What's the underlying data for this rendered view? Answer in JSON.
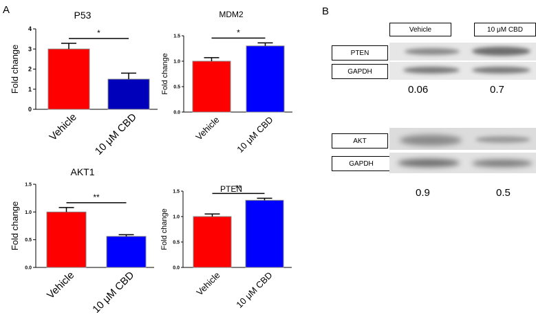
{
  "panel_labels": {
    "a": "A",
    "b": "B"
  },
  "chart_data": [
    {
      "type": "bar",
      "title": "P53",
      "ylabel": "Fold change",
      "categories": [
        "Vehicle",
        "10 μM CBD"
      ],
      "values": [
        3.0,
        1.5
      ],
      "errors": [
        0.28,
        0.3
      ],
      "colors": [
        "#ff0000",
        "#0000bb"
      ],
      "ylim": [
        0,
        4
      ],
      "yticks": [
        "0",
        "1",
        "2",
        "3",
        "4"
      ],
      "significance": "*"
    },
    {
      "type": "bar",
      "title": "MDM2",
      "ylabel": "Fold change",
      "categories": [
        "Vehicle",
        "10 μM CBD"
      ],
      "values": [
        1.0,
        1.3
      ],
      "errors": [
        0.07,
        0.06
      ],
      "colors": [
        "#ff0000",
        "#0000ff"
      ],
      "ylim": [
        0,
        1.5
      ],
      "yticks": [
        "0.0",
        "0.5",
        "1.0",
        "1.5"
      ],
      "significance": "*"
    },
    {
      "type": "bar",
      "title": "AKT1",
      "ylabel": "Fold change",
      "categories": [
        "Vehicle",
        "10 μM CBD"
      ],
      "values": [
        1.0,
        0.56
      ],
      "errors": [
        0.08,
        0.03
      ],
      "colors": [
        "#ff0000",
        "#0000ff"
      ],
      "ylim": [
        0,
        1.5
      ],
      "yticks": [
        "0.0",
        "0.5",
        "1.0",
        "1.5"
      ],
      "significance": "**"
    },
    {
      "type": "bar",
      "title": "PTEN",
      "ylabel": "Fold change",
      "categories": [
        "Vehicle",
        "10 μM CBD"
      ],
      "values": [
        1.0,
        1.32
      ],
      "errors": [
        0.05,
        0.04
      ],
      "colors": [
        "#ff0000",
        "#0000ff"
      ],
      "ylim": [
        0,
        1.5
      ],
      "yticks": [
        "0.0",
        "0.5",
        "1.0",
        "1.5"
      ],
      "significance": "**"
    }
  ],
  "western_blot": {
    "lane_labels": [
      "Vehicle",
      "10 μM CBD"
    ],
    "blot1": {
      "protein": "PTEN",
      "control": "GAPDH",
      "ratios": [
        "0.06",
        "0.7"
      ]
    },
    "blot2": {
      "protein": "AKT",
      "control": "GAPDH",
      "ratios": [
        "0.9",
        "0.5"
      ]
    }
  }
}
